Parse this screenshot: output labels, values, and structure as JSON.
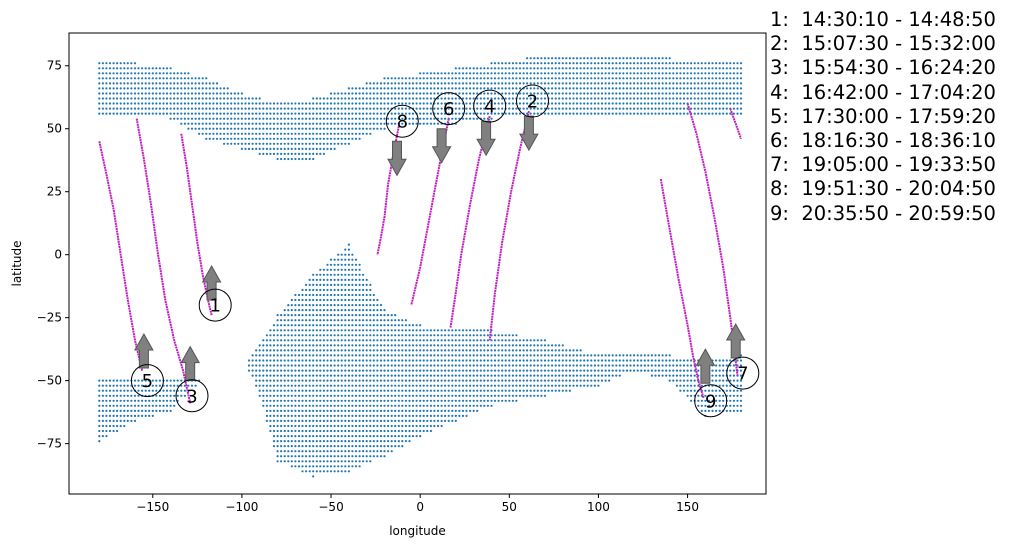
{
  "chart_data": {
    "type": "scatter",
    "xlabel": "longitude",
    "ylabel": "latitude",
    "xlim": [
      -197,
      194
    ],
    "ylim": [
      -95,
      88
    ],
    "xticks": [
      -150,
      -100,
      -50,
      0,
      50,
      100,
      150
    ],
    "yticks": [
      -75,
      -50,
      -25,
      0,
      25,
      50,
      75
    ],
    "colors": {
      "grid_points": "#1f77b4",
      "track": "#c020c0",
      "arrow_fill": "#808080",
      "arrow_edge": "#555555"
    },
    "coverage_grid": {
      "spacing_lon": 2,
      "spacing_lat": 2,
      "regions": [
        {
          "lon": [
            -180,
            180
          ],
          "lat_south": [
            -74,
            -66,
            -62,
            -48,
            -40,
            -56,
            -82,
            -88,
            -86,
            -80,
            -72,
            -60,
            -56,
            -52,
            -46,
            -50,
            -64,
            -62
          ],
          "lat_north": [
            -50,
            -50,
            -50,
            -50,
            -46,
            -36,
            -24,
            -8,
            4,
            -22,
            -28,
            -30,
            -34,
            -40,
            -40,
            -40,
            -42,
            -40
          ],
          "knots_lon": [
            -180,
            -160,
            -140,
            -120,
            -100,
            -90,
            -80,
            -60,
            -40,
            -20,
            0,
            40,
            70,
            100,
            120,
            140,
            160,
            180
          ]
        },
        {
          "lon": [
            -180,
            180
          ],
          "lat_south": [
            56,
            56,
            54,
            46,
            42,
            38,
            38,
            44,
            50,
            52,
            52,
            54,
            56,
            56,
            56,
            56,
            56,
            56
          ],
          "lat_north": [
            76,
            76,
            74,
            70,
            64,
            60,
            62,
            66,
            70,
            72,
            74,
            76,
            78,
            78,
            78,
            78,
            78,
            76
          ],
          "knots_lon": [
            -180,
            -160,
            -140,
            -120,
            -100,
            -80,
            -60,
            -40,
            -20,
            0,
            20,
            40,
            60,
            80,
            100,
            120,
            140,
            180
          ]
        }
      ]
    },
    "tracks": [
      {
        "id": "1",
        "lon": [
          -134,
          -131,
          -128,
          -125,
          -122,
          -119,
          -117
        ],
        "lat": [
          48,
          35,
          20,
          5,
          -8,
          -18,
          -24
        ]
      },
      {
        "id": "2",
        "lon": [
          61,
          56,
          51,
          46,
          42,
          39
        ],
        "lat": [
          57,
          42,
          25,
          5,
          -15,
          -34
        ]
      },
      {
        "id": "3",
        "lon": [
          -159,
          -155,
          -151,
          -147,
          -143,
          -138,
          -133,
          -129
        ],
        "lat": [
          54,
          38,
          20,
          0,
          -18,
          -34,
          -46,
          -59
        ]
      },
      {
        "id": "4",
        "lon": [
          39,
          33,
          28,
          23,
          20,
          17
        ],
        "lat": [
          55,
          38,
          20,
          0,
          -15,
          -29
        ]
      },
      {
        "id": "5",
        "lon": [
          -180,
          -176,
          -172,
          -168,
          -164,
          -160,
          -156
        ],
        "lat": [
          45,
          32,
          18,
          0,
          -18,
          -34,
          -46
        ]
      },
      {
        "id": "6",
        "lon": [
          16,
          12,
          8,
          4,
          0,
          -5
        ],
        "lat": [
          54,
          40,
          25,
          10,
          -5,
          -20
        ]
      },
      {
        "id": "7",
        "lon": [
          150,
          155,
          160,
          165,
          170,
          174,
          178
        ],
        "lat": [
          60,
          48,
          33,
          15,
          -5,
          -25,
          -48
        ]
      },
      {
        "id": "7b",
        "lon": [
          174,
          176,
          178,
          180
        ],
        "lat": [
          58,
          54,
          50,
          46
        ]
      },
      {
        "id": "8",
        "lon": [
          -12,
          -15,
          -18,
          -20,
          -22,
          -24
        ],
        "lat": [
          51,
          40,
          28,
          15,
          7,
          0
        ]
      },
      {
        "id": "9",
        "lon": [
          135,
          140,
          145,
          150,
          153,
          156,
          159
        ],
        "lat": [
          30,
          10,
          -10,
          -28,
          -40,
          -50,
          -57
        ]
      }
    ],
    "markers": [
      {
        "label": "1",
        "lon": -115,
        "lat": -20,
        "arrow": "up",
        "arrow_lon": -117,
        "arrow_lat": -18
      },
      {
        "label": "2",
        "lon": 63,
        "lat": 61,
        "arrow": "down",
        "arrow_lon": 61,
        "arrow_lat": 55
      },
      {
        "label": "3",
        "lon": -128,
        "lat": -56,
        "arrow": "up",
        "arrow_lon": -129,
        "arrow_lat": -50
      },
      {
        "label": "4",
        "lon": 39,
        "lat": 59,
        "arrow": "down",
        "arrow_lon": 37,
        "arrow_lat": 53
      },
      {
        "label": "5",
        "lon": -153,
        "lat": -50,
        "arrow": "up",
        "arrow_lon": -155,
        "arrow_lat": -45
      },
      {
        "label": "6",
        "lon": 16,
        "lat": 58,
        "arrow": "down",
        "arrow_lon": 12,
        "arrow_lat": 50
      },
      {
        "label": "7",
        "lon": 181,
        "lat": -47,
        "arrow": "up",
        "arrow_lon": 177,
        "arrow_lat": -41
      },
      {
        "label": "8",
        "lon": -10,
        "lat": 53,
        "arrow": "down",
        "arrow_lon": -13,
        "arrow_lat": 45
      },
      {
        "label": "9",
        "lon": 163,
        "lat": -58,
        "arrow": "up",
        "arrow_lon": 160,
        "arrow_lat": -51
      }
    ]
  },
  "legend": [
    "1:  14:30:10 - 14:48:50",
    "2:  15:07:30 - 15:32:00",
    "3:  15:54:30 - 16:24:20",
    "4:  16:42:00 - 17:04:20",
    "5:  17:30:00 - 17:59:20",
    "6:  18:16:30 - 18:36:10",
    "7:  19:05:00 - 19:33:50",
    "8:  19:51:30 - 20:04:50",
    "9:  20:35:50 - 20:59:50"
  ]
}
